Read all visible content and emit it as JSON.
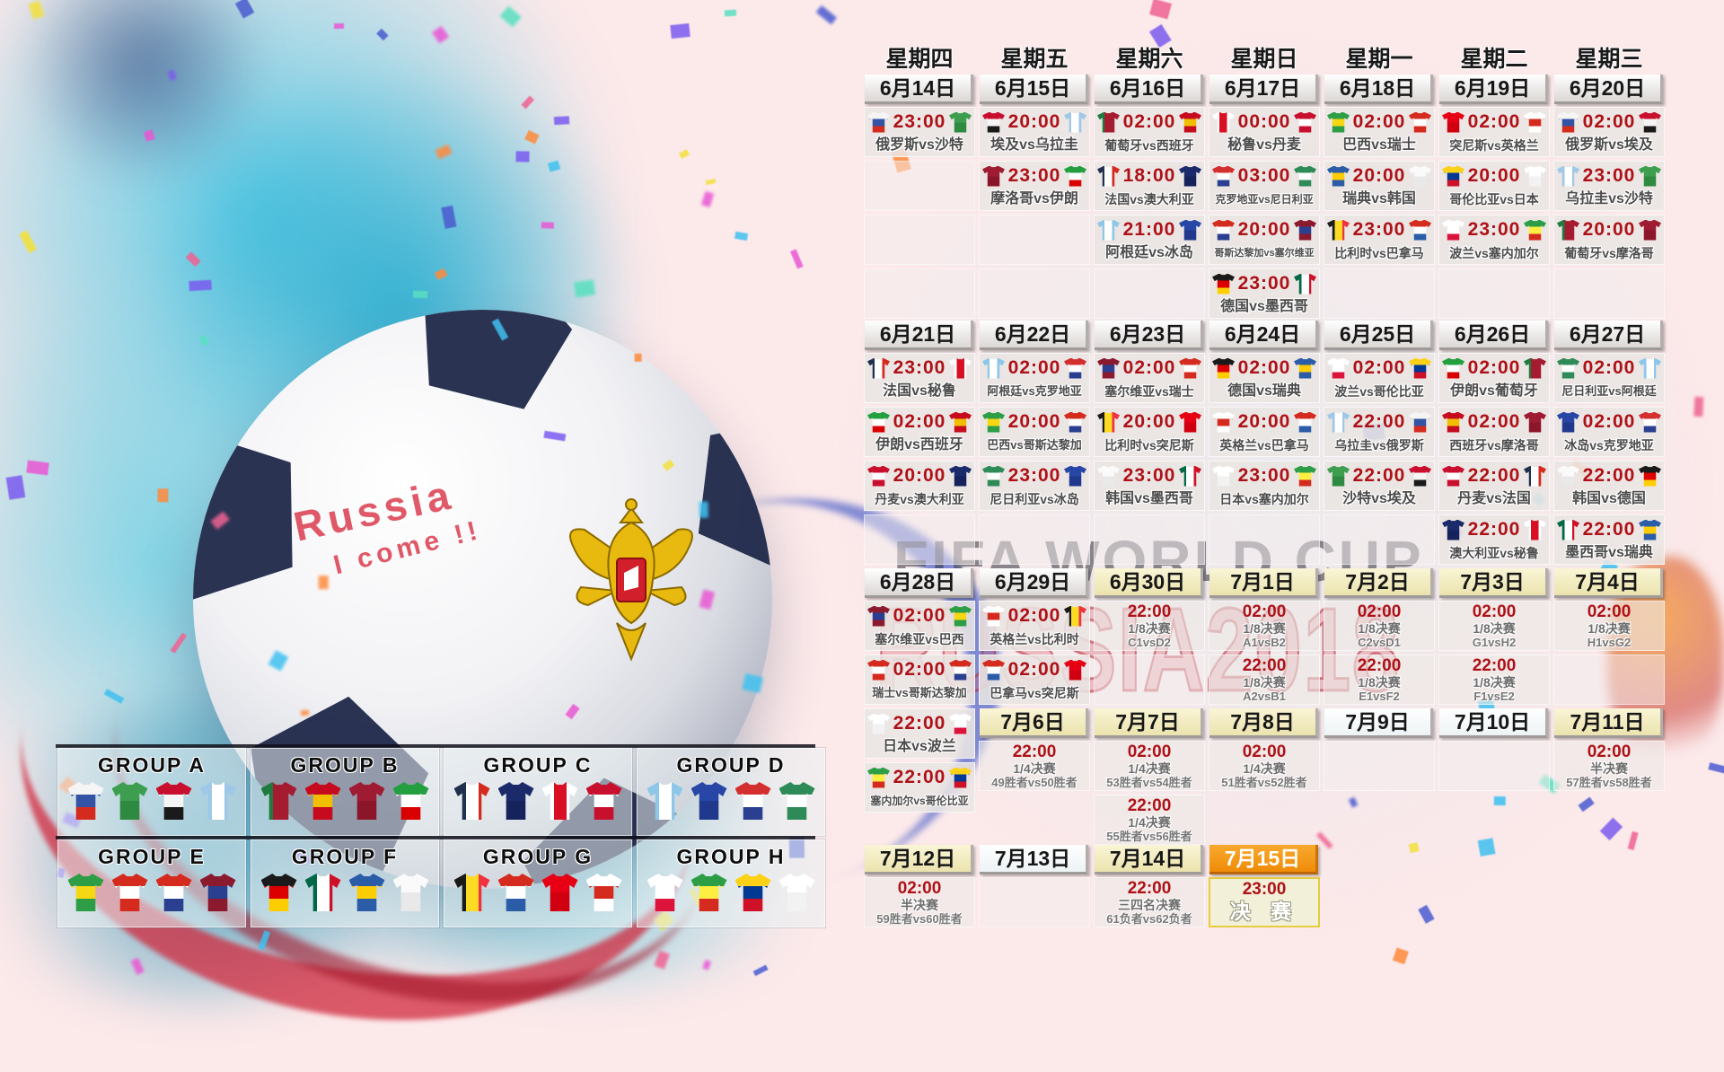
{
  "poster": {
    "watermark_line1": "FIFA WORLD CUP",
    "watermark_line2": "RUSSIA2018",
    "ball_text": {
      "line1": "Russia",
      "line2": "I come !!"
    }
  },
  "colors": {
    "time_red": "#ae1117",
    "date_text": "#171717",
    "team_text": "#4c4c4c",
    "final_border": "#e5cd3f",
    "final_date_orange": "#f29b1d",
    "watermark_dark": "#32323a",
    "watermark_red": "#b22834",
    "background_pink": "#fce9ea",
    "paint_teal": "#3fbcd9"
  },
  "weekdays": [
    "星期四",
    "星期五",
    "星期六",
    "星期日",
    "星期一",
    "星期二",
    "星期三"
  ],
  "teams": {
    "俄罗斯": {
      "d": "h",
      "c": [
        "#f5f5f5",
        "#3353a4",
        "#d52b1e"
      ]
    },
    "沙特": {
      "d": "h",
      "c": [
        "#3d9e4f",
        "#2f8a41"
      ]
    },
    "埃及": {
      "d": "h",
      "c": [
        "#c8102e",
        "#f5f5f5",
        "#1a1a1a"
      ]
    },
    "乌拉圭": {
      "d": "v",
      "c": [
        "#9ec7e8",
        "#ffffff",
        "#9ec7e8"
      ]
    },
    "葡萄牙": {
      "d": "v",
      "c": [
        "#1f7a3d",
        "#a51c30",
        "#a51c30"
      ]
    },
    "西班牙": {
      "d": "h",
      "c": [
        "#c60b1e",
        "#f1bf00",
        "#c60b1e"
      ]
    },
    "摩洛哥": {
      "d": "h",
      "c": [
        "#9e1b32",
        "#8c1629"
      ]
    },
    "伊朗": {
      "d": "h",
      "c": [
        "#239f40",
        "#ffffff",
        "#da0000"
      ]
    },
    "法国": {
      "d": "v",
      "c": [
        "#21304e",
        "#ffffff",
        "#d52b1e"
      ]
    },
    "澳大利亚": {
      "d": "h",
      "c": [
        "#1b2a6b",
        "#16225c"
      ]
    },
    "秘鲁": {
      "d": "v",
      "c": [
        "#ffffff",
        "#d91023",
        "#ffffff"
      ]
    },
    "丹麦": {
      "d": "h",
      "c": [
        "#c8102e",
        "#ffffff",
        "#c8102e"
      ]
    },
    "阿根廷": {
      "d": "v",
      "c": [
        "#8ec6e8",
        "#ffffff",
        "#8ec6e8"
      ]
    },
    "冰岛": {
      "d": "h",
      "c": [
        "#2846a6",
        "#20398c"
      ]
    },
    "克罗地亚": {
      "d": "h",
      "c": [
        "#d32f2f",
        "#ffffff",
        "#2a3f8f"
      ]
    },
    "尼日利亚": {
      "d": "h",
      "c": [
        "#2e8b57",
        "#ffffff",
        "#2e8b57"
      ]
    },
    "巴西": {
      "d": "h",
      "c": [
        "#2d9e46",
        "#f6d713",
        "#2d9e46"
      ]
    },
    "瑞士": {
      "d": "h",
      "c": [
        "#d52b1e",
        "#ffffff",
        "#d52b1e"
      ]
    },
    "哥斯达黎加": {
      "d": "h",
      "c": [
        "#d52b1e",
        "#ffffff",
        "#2a3f8f"
      ]
    },
    "塞尔维亚": {
      "d": "h",
      "c": [
        "#8b1a2f",
        "#2a3f8f",
        "#8b1a2f"
      ]
    },
    "德国": {
      "d": "h",
      "c": [
        "#1a1a1a",
        "#dd0000",
        "#ffce00"
      ]
    },
    "墨西哥": {
      "d": "v",
      "c": [
        "#006847",
        "#ffffff",
        "#ce1126"
      ]
    },
    "瑞典": {
      "d": "h",
      "c": [
        "#2a5ca8",
        "#fecc02",
        "#2a5ca8"
      ]
    },
    "韩国": {
      "d": "h",
      "c": [
        "#fafafa",
        "#e9e9e9"
      ]
    },
    "比利时": {
      "d": "v",
      "c": [
        "#1a1a1a",
        "#fdda24",
        "#ef3340"
      ]
    },
    "巴拿马": {
      "d": "h",
      "c": [
        "#d52b1e",
        "#ffffff",
        "#2a5ca8"
      ]
    },
    "突尼斯": {
      "d": "h",
      "c": [
        "#e70013",
        "#d00011"
      ]
    },
    "英格兰": {
      "d": "h",
      "c": [
        "#ffffff",
        "#d52b1e",
        "#ffffff"
      ]
    },
    "波兰": {
      "d": "h",
      "c": [
        "#ffffff",
        "#ffffff",
        "#dc143c"
      ]
    },
    "塞内加尔": {
      "d": "h",
      "c": [
        "#2d9e46",
        "#fdef42",
        "#d52b1e"
      ]
    },
    "哥伦比亚": {
      "d": "h",
      "c": [
        "#fcd116",
        "#003893",
        "#ce1126"
      ]
    },
    "日本": {
      "d": "h",
      "c": [
        "#ffffff",
        "#f2f2f2"
      ]
    }
  },
  "calendar": {
    "blocks": [
      {
        "columns": [
          [
            {
              "t": "date",
              "label": "6月14日",
              "style": "gray"
            },
            {
              "t": "match",
              "time": "23:00",
              "home": "俄罗斯",
              "away": "沙特"
            },
            {
              "t": "empty"
            },
            {
              "t": "empty"
            },
            {
              "t": "empty"
            }
          ],
          [
            {
              "t": "date",
              "label": "6月15日",
              "style": "gray"
            },
            {
              "t": "match",
              "time": "20:00",
              "home": "埃及",
              "away": "乌拉圭"
            },
            {
              "t": "match",
              "time": "23:00",
              "home": "摩洛哥",
              "away": "伊朗"
            },
            {
              "t": "empty"
            },
            {
              "t": "empty"
            }
          ],
          [
            {
              "t": "date",
              "label": "6月16日",
              "style": "gray"
            },
            {
              "t": "match",
              "time": "02:00",
              "home": "葡萄牙",
              "away": "西班牙"
            },
            {
              "t": "match",
              "time": "18:00",
              "home": "法国",
              "away": "澳大利亚"
            },
            {
              "t": "match",
              "time": "21:00",
              "home": "阿根廷",
              "away": "冰岛"
            },
            {
              "t": "empty"
            }
          ],
          [
            {
              "t": "date",
              "label": "6月17日",
              "style": "gray"
            },
            {
              "t": "match",
              "time": "00:00",
              "home": "秘鲁",
              "away": "丹麦"
            },
            {
              "t": "match",
              "time": "03:00",
              "home": "克罗地亚",
              "away": "尼日利亚"
            },
            {
              "t": "match",
              "time": "20:00",
              "home": "哥斯达黎加",
              "away": "塞尔维亚"
            },
            {
              "t": "match",
              "time": "23:00",
              "home": "德国",
              "away": "墨西哥"
            }
          ],
          [
            {
              "t": "date",
              "label": "6月18日",
              "style": "gray"
            },
            {
              "t": "match",
              "time": "02:00",
              "home": "巴西",
              "away": "瑞士"
            },
            {
              "t": "match",
              "time": "20:00",
              "home": "瑞典",
              "away": "韩国"
            },
            {
              "t": "match",
              "time": "23:00",
              "home": "比利时",
              "away": "巴拿马"
            },
            {
              "t": "empty"
            }
          ],
          [
            {
              "t": "date",
              "label": "6月19日",
              "style": "gray"
            },
            {
              "t": "match",
              "time": "02:00",
              "home": "突尼斯",
              "away": "英格兰"
            },
            {
              "t": "match",
              "time": "20:00",
              "home": "哥伦比亚",
              "away": "日本"
            },
            {
              "t": "match",
              "time": "23:00",
              "home": "波兰",
              "away": "塞内加尔"
            },
            {
              "t": "empty"
            }
          ],
          [
            {
              "t": "date",
              "label": "6月20日",
              "style": "gray"
            },
            {
              "t": "match",
              "time": "02:00",
              "home": "俄罗斯",
              "away": "埃及"
            },
            {
              "t": "match",
              "time": "23:00",
              "home": "乌拉圭",
              "away": "沙特"
            },
            {
              "t": "match",
              "time": "20:00",
              "home": "葡萄牙",
              "away": "摩洛哥"
            },
            {
              "t": "empty"
            }
          ]
        ]
      },
      {
        "columns": [
          [
            {
              "t": "date",
              "label": "6月21日",
              "style": "gray"
            },
            {
              "t": "match",
              "time": "23:00",
              "home": "法国",
              "away": "秘鲁"
            },
            {
              "t": "match",
              "time": "02:00",
              "home": "伊朗",
              "away": "西班牙"
            },
            {
              "t": "match",
              "time": "20:00",
              "home": "丹麦",
              "away": "澳大利亚"
            },
            {
              "t": "empty"
            }
          ],
          [
            {
              "t": "date",
              "label": "6月22日",
              "style": "gray"
            },
            {
              "t": "match",
              "time": "02:00",
              "home": "阿根廷",
              "away": "克罗地亚"
            },
            {
              "t": "match",
              "time": "20:00",
              "home": "巴西",
              "away": "哥斯达黎加"
            },
            {
              "t": "match",
              "time": "23:00",
              "home": "尼日利亚",
              "away": "冰岛"
            },
            {
              "t": "empty"
            }
          ],
          [
            {
              "t": "date",
              "label": "6月23日",
              "style": "gray"
            },
            {
              "t": "match",
              "time": "02:00",
              "home": "塞尔维亚",
              "away": "瑞士"
            },
            {
              "t": "match",
              "time": "20:00",
              "home": "比利时",
              "away": "突尼斯"
            },
            {
              "t": "match",
              "time": "23:00",
              "home": "韩国",
              "away": "墨西哥"
            },
            {
              "t": "empty"
            }
          ],
          [
            {
              "t": "date",
              "label": "6月24日",
              "style": "gray"
            },
            {
              "t": "match",
              "time": "02:00",
              "home": "德国",
              "away": "瑞典"
            },
            {
              "t": "match",
              "time": "20:00",
              "home": "英格兰",
              "away": "巴拿马"
            },
            {
              "t": "match",
              "time": "23:00",
              "home": "日本",
              "away": "塞内加尔"
            },
            {
              "t": "empty"
            }
          ],
          [
            {
              "t": "date",
              "label": "6月25日",
              "style": "gray"
            },
            {
              "t": "match",
              "time": "02:00",
              "home": "波兰",
              "away": "哥伦比亚"
            },
            {
              "t": "match",
              "time": "22:00",
              "home": "乌拉圭",
              "away": "俄罗斯"
            },
            {
              "t": "match",
              "time": "22:00",
              "home": "沙特",
              "away": "埃及"
            },
            {
              "t": "empty"
            }
          ],
          [
            {
              "t": "date",
              "label": "6月26日",
              "style": "gray"
            },
            {
              "t": "match",
              "time": "02:00",
              "home": "伊朗",
              "away": "葡萄牙"
            },
            {
              "t": "match",
              "time": "02:00",
              "home": "西班牙",
              "away": "摩洛哥"
            },
            {
              "t": "match",
              "time": "22:00",
              "home": "丹麦",
              "away": "法国"
            },
            {
              "t": "match",
              "time": "22:00",
              "home": "澳大利亚",
              "away": "秘鲁"
            }
          ],
          [
            {
              "t": "date",
              "label": "6月27日",
              "style": "gray"
            },
            {
              "t": "match",
              "time": "02:00",
              "home": "尼日利亚",
              "away": "阿根廷"
            },
            {
              "t": "match",
              "time": "02:00",
              "home": "冰岛",
              "away": "克罗地亚"
            },
            {
              "t": "match",
              "time": "22:00",
              "home": "韩国",
              "away": "德国"
            },
            {
              "t": "match",
              "time": "22:00",
              "home": "墨西哥",
              "away": "瑞典"
            }
          ]
        ]
      },
      {
        "columns": [
          [
            {
              "t": "date",
              "label": "6月28日",
              "style": "gray"
            },
            {
              "t": "match",
              "time": "02:00",
              "home": "塞尔维亚",
              "away": "巴西"
            },
            {
              "t": "match",
              "time": "02:00",
              "home": "瑞士",
              "away": "哥斯达黎加"
            },
            {
              "t": "match",
              "time": "22:00",
              "home": "日本",
              "away": "波兰"
            },
            {
              "t": "match",
              "time": "22:00",
              "home": "塞内加尔",
              "away": "哥伦比亚"
            }
          ],
          [
            {
              "t": "date",
              "label": "6月29日",
              "style": "gray"
            },
            {
              "t": "match",
              "time": "02:00",
              "home": "英格兰",
              "away": "比利时"
            },
            {
              "t": "match",
              "time": "02:00",
              "home": "巴拿马",
              "away": "突尼斯"
            },
            {
              "t": "date",
              "label": "7月6日",
              "style": "cream"
            },
            {
              "t": "ko",
              "time": "22:00",
              "round": "1/4决赛",
              "pair": "49胜者vs50胜者"
            }
          ],
          [
            {
              "t": "date",
              "label": "6月30日",
              "style": "cream"
            },
            {
              "t": "ko",
              "time": "22:00",
              "round": "1/8决赛",
              "pair": "C1vsD2"
            },
            {
              "t": "empty"
            },
            {
              "t": "date",
              "label": "7月7日",
              "style": "cream"
            },
            {
              "t": "ko",
              "time": "02:00",
              "round": "1/4决赛",
              "pair": "53胜者vs54胜者"
            },
            {
              "t": "ko",
              "time": "22:00",
              "round": "1/4决赛",
              "pair": "55胜者vs56胜者"
            }
          ],
          [
            {
              "t": "date",
              "label": "7月1日",
              "style": "cream"
            },
            {
              "t": "ko",
              "time": "02:00",
              "round": "1/8决赛",
              "pair": "A1vsB2"
            },
            {
              "t": "ko",
              "time": "22:00",
              "round": "1/8决赛",
              "pair": "A2vsB1"
            },
            {
              "t": "date",
              "label": "7月8日",
              "style": "cream"
            },
            {
              "t": "ko",
              "time": "02:00",
              "round": "1/4决赛",
              "pair": "51胜者vs52胜者"
            }
          ],
          [
            {
              "t": "date",
              "label": "7月2日",
              "style": "cream"
            },
            {
              "t": "ko",
              "time": "02:00",
              "round": "1/8决赛",
              "pair": "C2vsD1"
            },
            {
              "t": "ko",
              "time": "22:00",
              "round": "1/8决赛",
              "pair": "E1vsF2"
            },
            {
              "t": "date",
              "label": "7月9日",
              "style": "white"
            },
            {
              "t": "empty"
            }
          ],
          [
            {
              "t": "date",
              "label": "7月3日",
              "style": "cream"
            },
            {
              "t": "ko",
              "time": "02:00",
              "round": "1/8决赛",
              "pair": "G1vsH2"
            },
            {
              "t": "ko",
              "time": "22:00",
              "round": "1/8决赛",
              "pair": "F1vsE2"
            },
            {
              "t": "date",
              "label": "7月10日",
              "style": "white"
            },
            {
              "t": "empty"
            }
          ],
          [
            {
              "t": "date",
              "label": "7月4日",
              "style": "cream"
            },
            {
              "t": "ko",
              "time": "02:00",
              "round": "1/8决赛",
              "pair": "H1vsG2"
            },
            {
              "t": "empty"
            },
            {
              "t": "date",
              "label": "7月11日",
              "style": "cream"
            },
            {
              "t": "ko",
              "time": "02:00",
              "round": "半决赛",
              "pair": "57胜者vs58胜者"
            }
          ]
        ]
      },
      {
        "columns": [
          [
            {
              "t": "date",
              "label": "7月12日",
              "style": "cream"
            },
            {
              "t": "ko",
              "time": "02:00",
              "round": "半决赛",
              "pair": "59胜者vs60胜者"
            }
          ],
          [
            {
              "t": "date",
              "label": "7月13日",
              "style": "white"
            },
            {
              "t": "empty"
            }
          ],
          [
            {
              "t": "date",
              "label": "7月14日",
              "style": "cream"
            },
            {
              "t": "ko",
              "time": "22:00",
              "round": "三四名决赛",
              "pair": "61负者vs62负者"
            }
          ],
          [
            {
              "t": "date",
              "label": "7月15日",
              "style": "orange"
            },
            {
              "t": "final",
              "time": "23:00",
              "label": "决 赛"
            }
          ],
          [],
          [],
          []
        ]
      }
    ]
  },
  "groups": [
    {
      "label": "GROUP A",
      "teams": [
        "俄罗斯",
        "沙特",
        "埃及",
        "乌拉圭"
      ]
    },
    {
      "label": "GROUP B",
      "teams": [
        "葡萄牙",
        "西班牙",
        "摩洛哥",
        "伊朗"
      ]
    },
    {
      "label": "GROUP C",
      "teams": [
        "法国",
        "澳大利亚",
        "秘鲁",
        "丹麦"
      ]
    },
    {
      "label": "GROUP D",
      "teams": [
        "阿根廷",
        "冰岛",
        "克罗地亚",
        "尼日利亚"
      ]
    },
    {
      "label": "GROUP E",
      "teams": [
        "巴西",
        "瑞士",
        "哥斯达黎加",
        "塞尔维亚"
      ]
    },
    {
      "label": "GROUP F",
      "teams": [
        "德国",
        "墨西哥",
        "瑞典",
        "韩国"
      ]
    },
    {
      "label": "GROUP G",
      "teams": [
        "比利时",
        "巴拿马",
        "突尼斯",
        "英格兰"
      ]
    },
    {
      "label": "GROUP H",
      "teams": [
        "波兰",
        "塞内加尔",
        "哥伦比亚",
        "日本"
      ]
    }
  ]
}
